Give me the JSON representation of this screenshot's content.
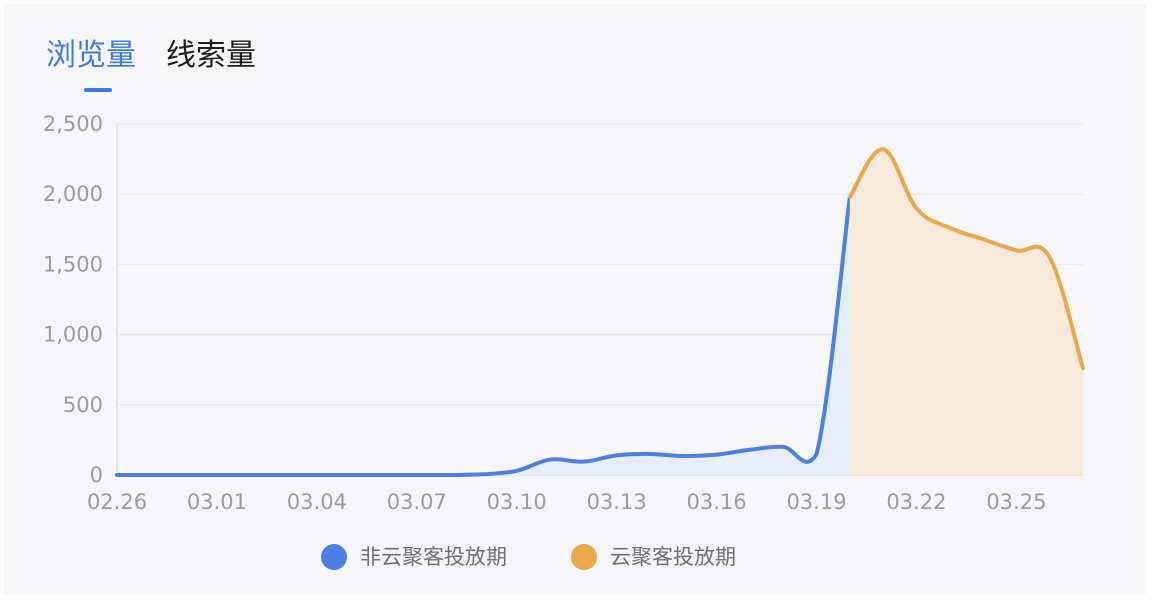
{
  "tabs": [
    {
      "label": "浏览量",
      "active": true
    },
    {
      "label": "线索量",
      "active": false
    }
  ],
  "colors": {
    "accent": "#3d79e6",
    "series_blue": "#4e7fe6",
    "series_orange": "#eaa84a",
    "fill_blue": "#e6edfb",
    "fill_orange": "#f7eadb",
    "grid": "#e6e7eb",
    "tick": "#9a9da4"
  },
  "chart_data": {
    "type": "area",
    "title": "",
    "xlabel": "",
    "ylabel": "",
    "ylim": [
      0,
      2500
    ],
    "yticks": [
      0,
      500,
      1000,
      1500,
      2000,
      2500
    ],
    "ytick_labels": [
      "0",
      "500",
      "1,000",
      "1,500",
      "2,000",
      "2,500"
    ],
    "xtick_labels": [
      "02.26",
      "03.01",
      "03.04",
      "03.07",
      "03.10",
      "03.13",
      "03.16",
      "03.19",
      "03.22",
      "03.25"
    ],
    "grid": true,
    "legend_position": "bottom",
    "x": [
      "02.26",
      "02.27",
      "02.28",
      "03.01",
      "03.02",
      "03.03",
      "03.04",
      "03.05",
      "03.06",
      "03.07",
      "03.08",
      "03.09",
      "03.10",
      "03.11",
      "03.12",
      "03.13",
      "03.14",
      "03.15",
      "03.16",
      "03.17",
      "03.18",
      "03.19",
      "03.20",
      "03.21",
      "03.22",
      "03.23",
      "03.24",
      "03.25",
      "03.26",
      "03.27"
    ],
    "series": [
      {
        "name": "非云聚客投放期",
        "color": "#4e7fe6",
        "values": [
          0,
          0,
          0,
          0,
          0,
          0,
          0,
          0,
          0,
          0,
          0,
          5,
          30,
          110,
          95,
          140,
          150,
          135,
          145,
          180,
          200,
          150,
          1980,
          null,
          null,
          null,
          null,
          null,
          null,
          null
        ]
      },
      {
        "name": "云聚客投放期",
        "color": "#eaa84a",
        "values": [
          null,
          null,
          null,
          null,
          null,
          null,
          null,
          null,
          null,
          null,
          null,
          null,
          null,
          null,
          null,
          null,
          null,
          null,
          null,
          null,
          null,
          null,
          1980,
          2320,
          1900,
          1760,
          1680,
          1600,
          1550,
          760
        ]
      }
    ]
  }
}
